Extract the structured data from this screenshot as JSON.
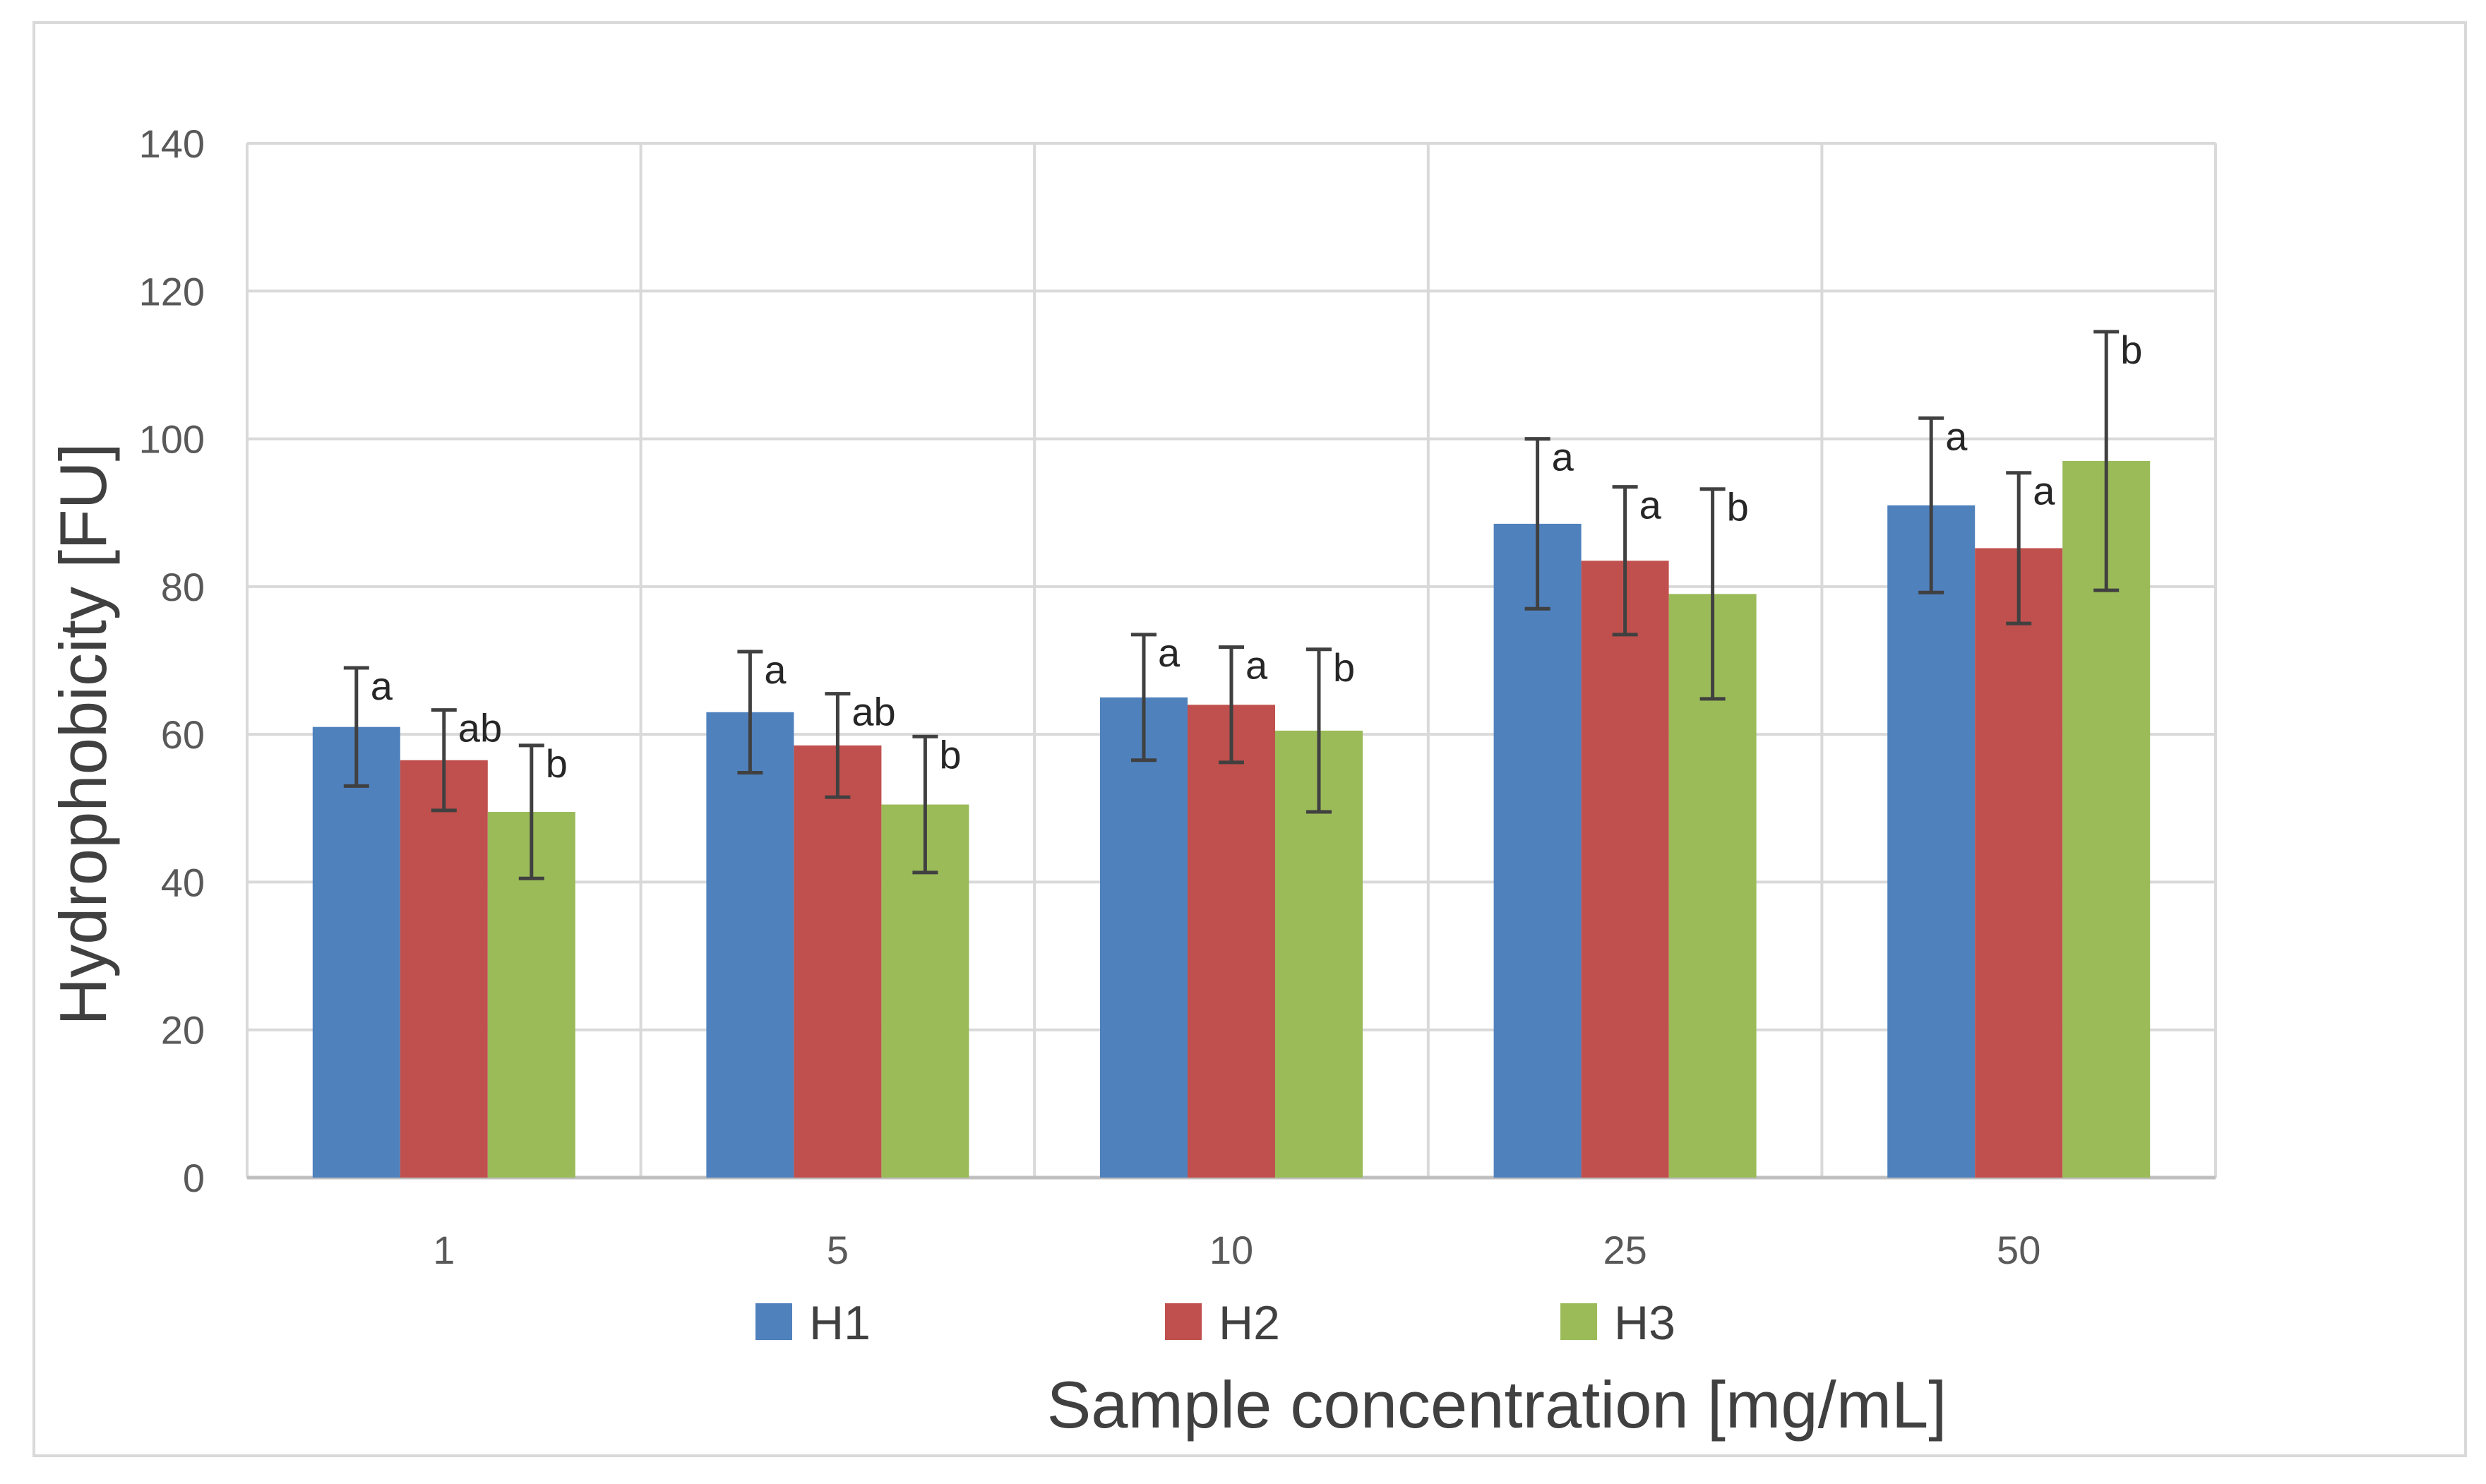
{
  "chart_data": {
    "type": "bar",
    "title": "",
    "xlabel": "Sample concentration [mg/mL]",
    "ylabel": "Hydrophobicity  [FU]",
    "categories": [
      "1",
      "5",
      "10",
      "25",
      "50"
    ],
    "ylim": [
      0,
      140
    ],
    "yticks": [
      "0",
      "20",
      "40",
      "60",
      "80",
      "100",
      "120",
      "140"
    ],
    "grid": true,
    "legend_position": "bottom",
    "series": [
      {
        "name": "H1",
        "color": "#4f81bd",
        "values": [
          61,
          63,
          65,
          88.5,
          91
        ],
        "errors": [
          8,
          8.2,
          8.5,
          11.5,
          11.8
        ],
        "labels": [
          "a",
          "a",
          "a",
          "a",
          "a"
        ]
      },
      {
        "name": "H2",
        "color": "#c0504d",
        "values": [
          56.5,
          58.5,
          64,
          83.5,
          85.2
        ],
        "errors": [
          6.8,
          7,
          7.8,
          10,
          10.2
        ],
        "labels": [
          "ab",
          "ab",
          "a",
          "a",
          "a"
        ]
      },
      {
        "name": "H3",
        "color": "#9bbb59",
        "values": [
          49.5,
          50.5,
          60.5,
          79,
          97
        ],
        "errors": [
          9,
          9.2,
          11,
          14.2,
          17.5
        ],
        "labels": [
          "b",
          "b",
          "b",
          "b",
          "b"
        ]
      }
    ]
  }
}
